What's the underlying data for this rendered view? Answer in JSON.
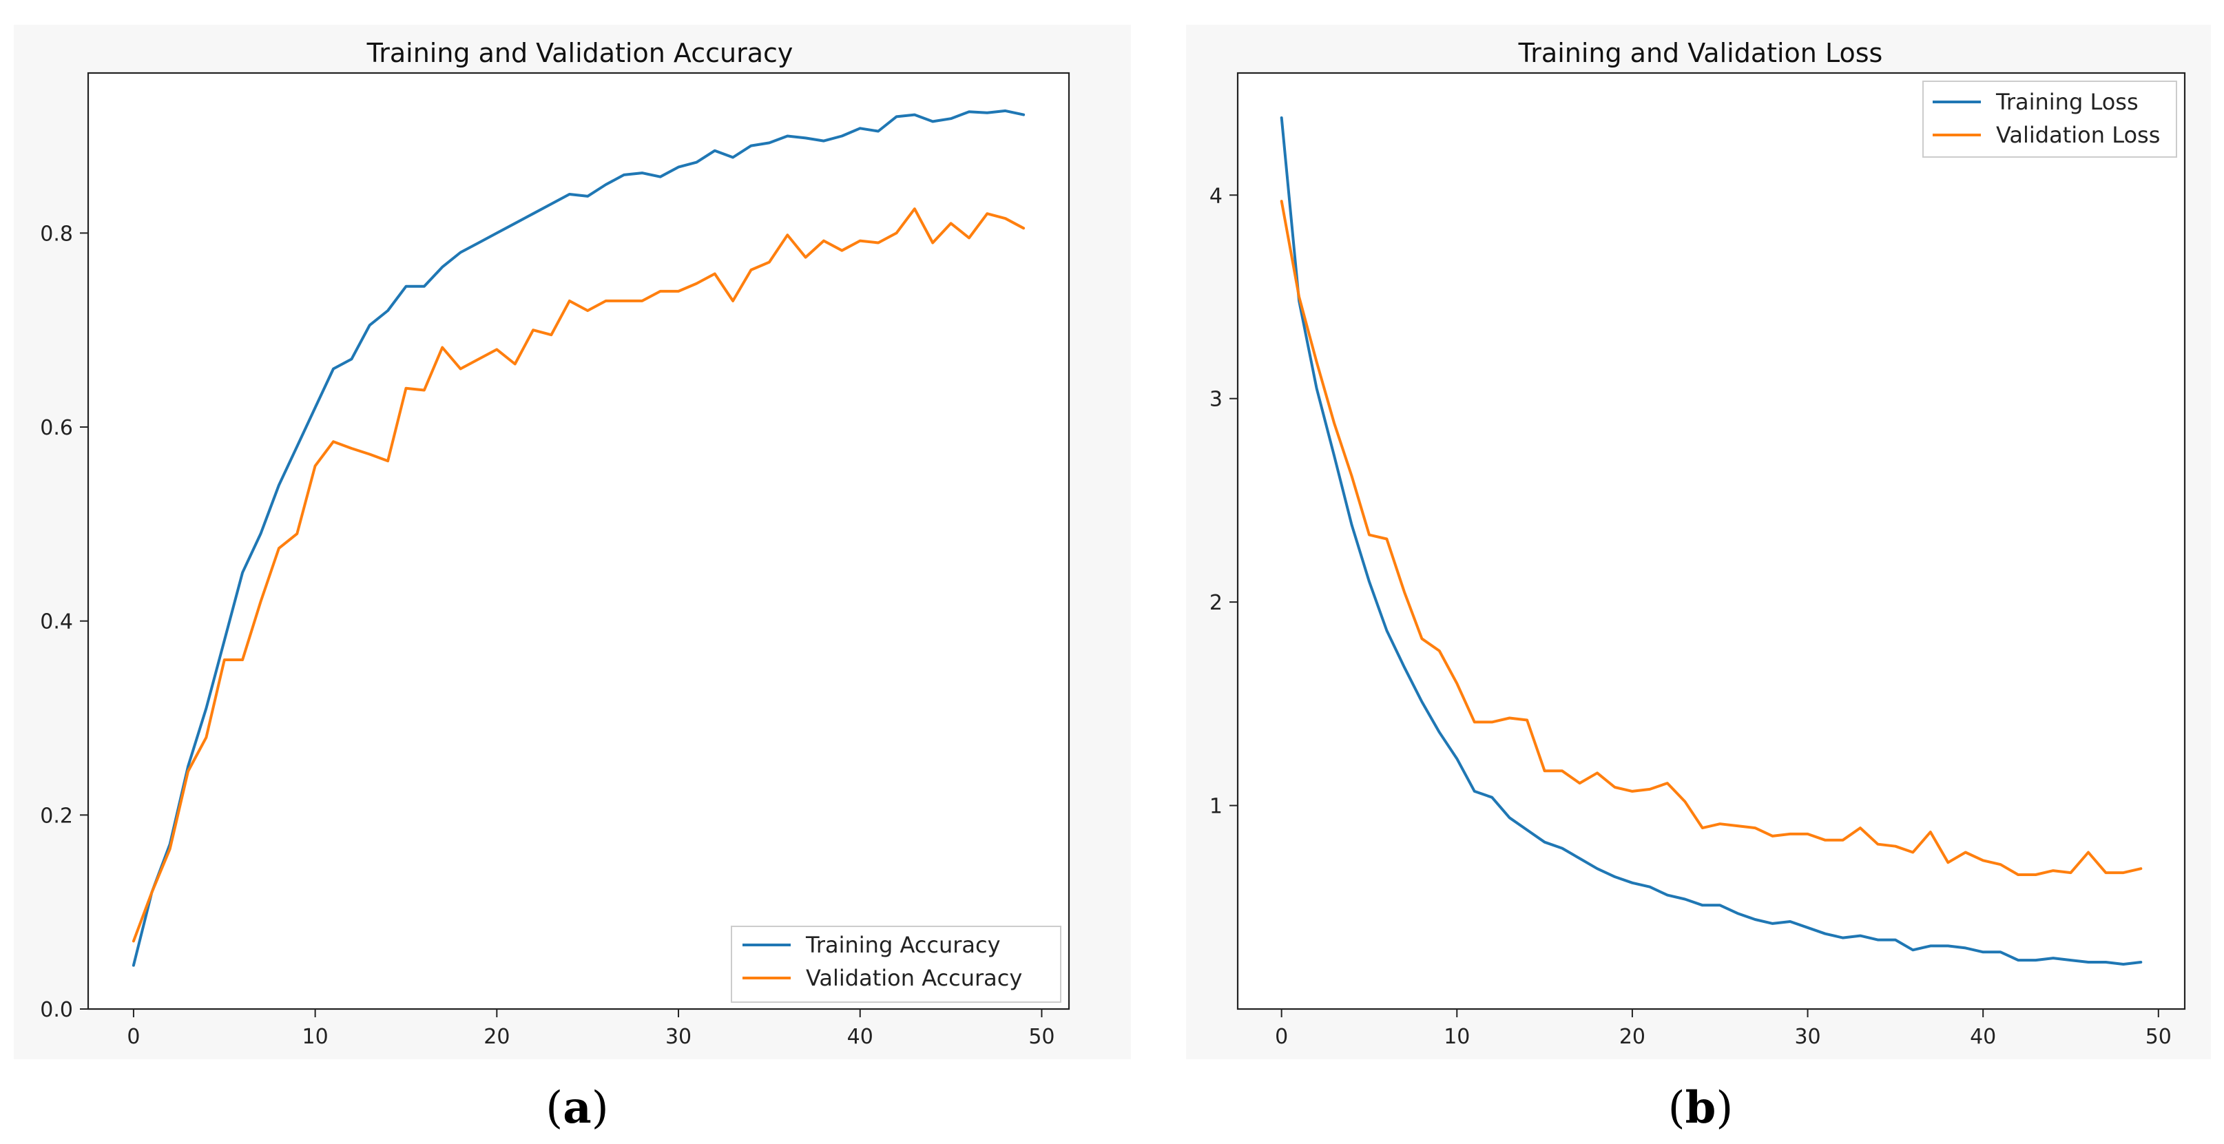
{
  "colors": {
    "training": "#1f77b4",
    "validation": "#ff7f0e"
  },
  "chart_data": [
    {
      "type": "line",
      "title": "Training and Validation Accuracy",
      "caption": {
        "open": "(",
        "letter": "a",
        "close": ")"
      },
      "xlabel": "",
      "ylabel": "",
      "xlim": [
        -2.5,
        51.5
      ],
      "ylim": [
        0,
        0.965
      ],
      "xticks": [
        0,
        10,
        20,
        30,
        40,
        50
      ],
      "xtick_labels": [
        "0",
        "10",
        "20",
        "30",
        "40",
        "50"
      ],
      "yticks": [
        0,
        0.2,
        0.4,
        0.6,
        0.8
      ],
      "ytick_labels": [
        "0.0",
        "0.2",
        "0.4",
        "0.6",
        "0.8"
      ],
      "legend_position": "lower-right",
      "series": [
        {
          "name": "Training Accuracy",
          "color": "#1f77b4",
          "values": [
            0.045,
            0.12,
            0.17,
            0.25,
            0.31,
            0.38,
            0.45,
            0.49,
            0.54,
            0.58,
            0.62,
            0.66,
            0.67,
            0.705,
            0.72,
            0.745,
            0.745,
            0.765,
            0.78,
            0.79,
            0.8,
            0.81,
            0.82,
            0.83,
            0.84,
            0.838,
            0.85,
            0.86,
            0.862,
            0.858,
            0.868,
            0.873,
            0.885,
            0.878,
            0.89,
            0.893,
            0.9,
            0.898,
            0.895,
            0.9,
            0.908,
            0.905,
            0.92,
            0.922,
            0.915,
            0.918,
            0.925,
            0.924,
            0.926,
            0.922
          ]
        },
        {
          "name": "Validation Accuracy",
          "color": "#ff7f0e",
          "values": [
            0.07,
            0.12,
            0.165,
            0.245,
            0.28,
            0.36,
            0.36,
            0.42,
            0.475,
            0.49,
            0.56,
            0.585,
            0.578,
            0.572,
            0.565,
            0.64,
            0.638,
            0.682,
            0.66,
            0.67,
            0.68,
            0.665,
            0.7,
            0.695,
            0.73,
            0.72,
            0.73,
            0.73,
            0.73,
            0.74,
            0.74,
            0.748,
            0.758,
            0.73,
            0.762,
            0.77,
            0.798,
            0.775,
            0.792,
            0.782,
            0.792,
            0.79,
            0.8,
            0.825,
            0.79,
            0.81,
            0.795,
            0.82,
            0.815,
            0.805
          ]
        }
      ]
    },
    {
      "type": "line",
      "title": "Training and Validation Loss",
      "caption": {
        "open": "(",
        "letter": "b",
        "close": ")"
      },
      "xlabel": "",
      "ylabel": "",
      "xlim": [
        -2.5,
        51.5
      ],
      "ylim": [
        0.0,
        4.6
      ],
      "xticks": [
        0,
        10,
        20,
        30,
        40,
        50
      ],
      "xtick_labels": [
        "0",
        "10",
        "20",
        "30",
        "40",
        "50"
      ],
      "yticks": [
        1,
        2,
        3,
        4
      ],
      "ytick_labels": [
        "1",
        "2",
        "3",
        "4"
      ],
      "legend_position": "top-right",
      "series": [
        {
          "name": "Training Loss",
          "color": "#1f77b4",
          "values": [
            4.38,
            3.48,
            3.05,
            2.72,
            2.38,
            2.1,
            1.86,
            1.68,
            1.51,
            1.36,
            1.23,
            1.07,
            1.04,
            0.94,
            0.88,
            0.82,
            0.79,
            0.74,
            0.69,
            0.65,
            0.62,
            0.6,
            0.56,
            0.54,
            0.51,
            0.51,
            0.47,
            0.44,
            0.42,
            0.43,
            0.4,
            0.37,
            0.35,
            0.36,
            0.34,
            0.34,
            0.29,
            0.31,
            0.31,
            0.3,
            0.28,
            0.28,
            0.24,
            0.24,
            0.25,
            0.24,
            0.23,
            0.23,
            0.22,
            0.23
          ]
        },
        {
          "name": "Validation Loss",
          "color": "#ff7f0e",
          "values": [
            3.97,
            3.5,
            3.18,
            2.88,
            2.62,
            2.33,
            2.31,
            2.05,
            1.82,
            1.76,
            1.6,
            1.41,
            1.41,
            1.43,
            1.42,
            1.17,
            1.17,
            1.11,
            1.16,
            1.09,
            1.07,
            1.08,
            1.11,
            1.02,
            0.89,
            0.91,
            0.9,
            0.89,
            0.85,
            0.86,
            0.86,
            0.83,
            0.83,
            0.89,
            0.81,
            0.8,
            0.77,
            0.87,
            0.72,
            0.77,
            0.73,
            0.71,
            0.66,
            0.66,
            0.68,
            0.67,
            0.77,
            0.67,
            0.67,
            0.69
          ]
        }
      ]
    }
  ]
}
